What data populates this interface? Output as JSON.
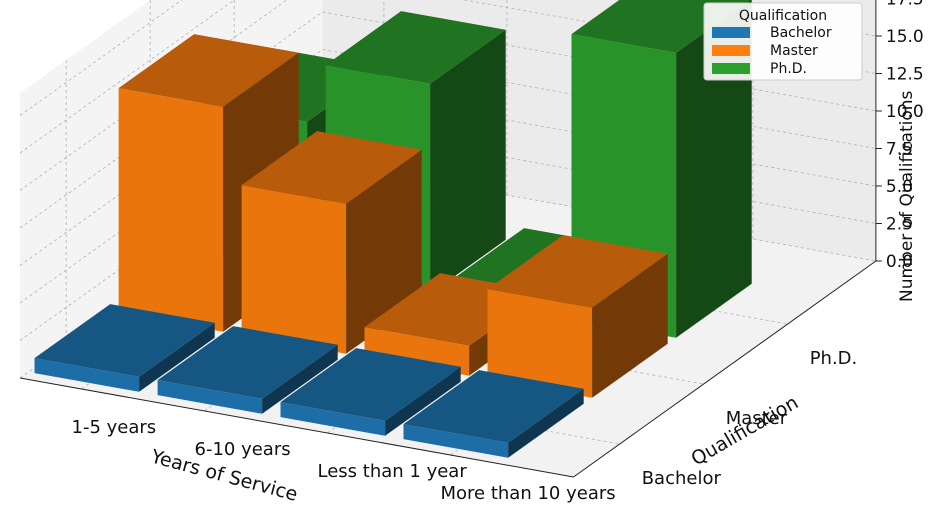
{
  "chart_data": {
    "type": "bar3d",
    "xlabel": "Years of Service",
    "ylabel": "Qualification",
    "zlabel": "Number of Qualifications",
    "x_categories": [
      "1-5 years",
      "6-10 years",
      "Less than 1 year",
      "More than 10 years"
    ],
    "y_categories": [
      "Bachelor",
      "Master",
      "Ph.D."
    ],
    "z_ticks": [
      "0.0",
      "2.5",
      "5.0",
      "7.5",
      "10.0",
      "12.5",
      "15.0",
      "17.5"
    ],
    "zlim": [
      0,
      19
    ],
    "legend": {
      "title": "Qualification",
      "placement": "top-right",
      "entries": [
        "Bachelor",
        "Master",
        "Ph.D."
      ]
    },
    "grid": true,
    "series": [
      {
        "name": "Bachelor",
        "color": "#1f77b4",
        "values": [
          1,
          1,
          1,
          1
        ]
      },
      {
        "name": "Master",
        "color": "#ff7f0e",
        "values": [
          15,
          10,
          2,
          6
        ]
      },
      {
        "name": "Ph.D.",
        "color": "#2ca02c",
        "values": [
          10,
          14,
          1,
          19
        ]
      }
    ]
  }
}
